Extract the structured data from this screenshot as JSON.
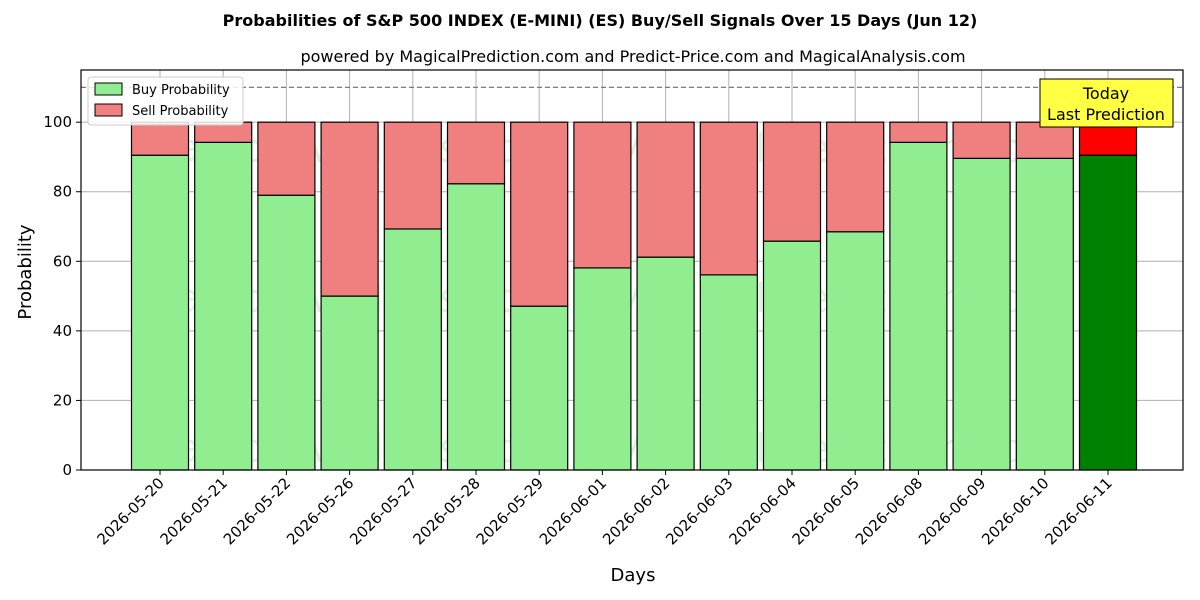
{
  "chart_data": {
    "type": "bar",
    "stacked": true,
    "title": "Probabilities of S&P 500 INDEX (E-MINI) (ES) Buy/Sell Signals Over 15 Days (Jun 12)",
    "subtitle": "powered by MagicalPrediction.com and Predict-Price.com and MagicalAnalysis.com",
    "xlabel": "Days",
    "ylabel": "Probability",
    "ylim": [
      0,
      115
    ],
    "yticks": [
      0,
      20,
      40,
      60,
      80,
      100
    ],
    "reference_line": 110,
    "grid": true,
    "legend_position": "top-left",
    "categories": [
      "2026-05-20",
      "2026-05-21",
      "2026-05-22",
      "2026-05-26",
      "2026-05-27",
      "2026-05-28",
      "2026-05-29",
      "2026-06-01",
      "2026-06-02",
      "2026-06-03",
      "2026-06-04",
      "2026-06-05",
      "2026-06-08",
      "2026-06-09",
      "2026-06-10",
      "2026-06-11"
    ],
    "series": [
      {
        "name": "Buy Probability",
        "color": "#90ee90",
        "highlight_color": "#008000",
        "values": [
          90.5,
          94.2,
          79.0,
          50.0,
          69.3,
          82.3,
          47.1,
          58.1,
          61.2,
          56.1,
          65.8,
          68.5,
          94.2,
          89.6,
          89.6,
          90.5
        ]
      },
      {
        "name": "Sell Probability",
        "color": "#f08080",
        "highlight_color": "#ff0000",
        "values": [
          9.5,
          5.8,
          21.0,
          50.0,
          30.7,
          17.7,
          52.9,
          41.9,
          38.8,
          43.9,
          34.2,
          31.5,
          5.8,
          10.4,
          10.4,
          9.5
        ]
      }
    ],
    "annotation": {
      "lines": [
        "Today",
        "Last Prediction"
      ],
      "color": "#ffff44"
    },
    "watermarks": [
      "MagicalAnalysis.com",
      "MagicalPrediction.com"
    ]
  }
}
